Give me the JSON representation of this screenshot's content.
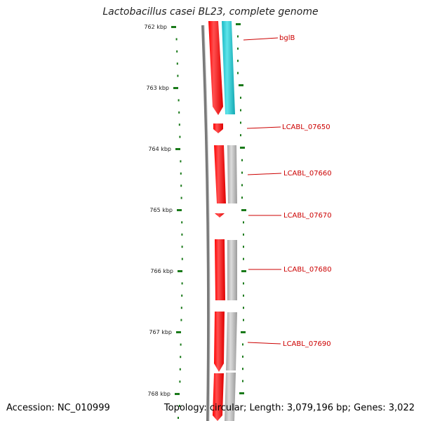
{
  "title": "Lactobacillus casei BL23, complete genome",
  "accession": "Accession: NC_010999",
  "summary": "Topology: circular; Length: 3,079,196 bp; Genes: 3,022",
  "ruler_ticks": [
    "762 kbp",
    "763 kbp",
    "764 kbp",
    "765 kbp",
    "766 kbp",
    "767 kbp",
    "768 kbp"
  ],
  "genes": [
    {
      "label": "bglB"
    },
    {
      "label": "LCABL_07650"
    },
    {
      "label": "LCABL_07660"
    },
    {
      "label": "LCABL_07670"
    },
    {
      "label": "LCABL_07680"
    },
    {
      "label": "LCABL_07690"
    }
  ],
  "colors": {
    "cds": "#ff0000",
    "cds_light": "#ff6a6a",
    "homolog_blue": "#21c8d2",
    "homolog_gray": "#b4b4b4",
    "backbone": "#7a7a7a",
    "ticks": "#1a7a1a",
    "label": "#cc0000"
  }
}
